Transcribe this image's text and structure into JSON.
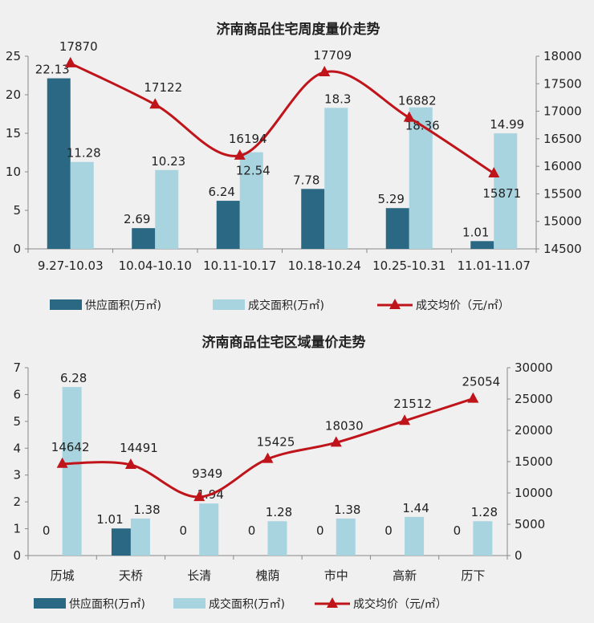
{
  "chart_data": [
    {
      "type": "bar",
      "title": "济南商品住宅周度量价走势",
      "categories": [
        "9.27-10.03",
        "10.04-10.10",
        "10.11-10.17",
        "10.18-10.24",
        "10.25-10.31",
        "11.01-11.07"
      ],
      "series": [
        {
          "name": "供应面积(万㎡)",
          "type": "bar",
          "axis": "left",
          "color": "#2b6883",
          "values": [
            22.13,
            2.69,
            6.24,
            7.78,
            5.29,
            1.01
          ]
        },
        {
          "name": "成交面积(万㎡)",
          "type": "bar",
          "axis": "left",
          "color": "#a8d4e0",
          "values": [
            11.28,
            10.23,
            12.54,
            18.3,
            18.36,
            14.99
          ]
        },
        {
          "name": "成交均价（元/㎡）",
          "type": "line",
          "axis": "right",
          "color": "#c0141b",
          "values": [
            17870,
            17122,
            16194,
            17709,
            16882,
            15871
          ]
        }
      ],
      "ylim": [
        0,
        25
      ],
      "yticks": [
        0,
        5,
        10,
        15,
        20,
        25
      ],
      "y2lim": [
        14500,
        18000
      ],
      "y2ticks": [
        14500,
        15000,
        15500,
        16000,
        16500,
        17000,
        17500,
        18000
      ],
      "legend": "bottom",
      "grid": false
    },
    {
      "type": "bar",
      "title": "济南商品住宅区域量价走势",
      "categories": [
        "历城",
        "天桥",
        "长清",
        "槐荫",
        "市中",
        "高新",
        "历下"
      ],
      "series": [
        {
          "name": "供应面积(万㎡)",
          "type": "bar",
          "axis": "left",
          "color": "#2b6883",
          "values": [
            0,
            1.01,
            0,
            0,
            0,
            0,
            0
          ]
        },
        {
          "name": "成交面积(万㎡)",
          "type": "bar",
          "axis": "left",
          "color": "#a8d4e0",
          "values": [
            6.28,
            1.38,
            1.94,
            1.28,
            1.38,
            1.44,
            1.28
          ]
        },
        {
          "name": "成交均价（元/㎡）",
          "type": "line",
          "axis": "right",
          "color": "#c0141b",
          "values": [
            14642,
            14491,
            9349,
            15425,
            18030,
            21512,
            25054
          ]
        }
      ],
      "ylim": [
        0,
        7
      ],
      "yticks": [
        0,
        1,
        2,
        3,
        4,
        5,
        6,
        7
      ],
      "y2lim": [
        0,
        30000
      ],
      "y2ticks": [
        0,
        5000,
        10000,
        15000,
        20000,
        25000,
        30000
      ],
      "legend": "bottom",
      "grid": false
    }
  ]
}
